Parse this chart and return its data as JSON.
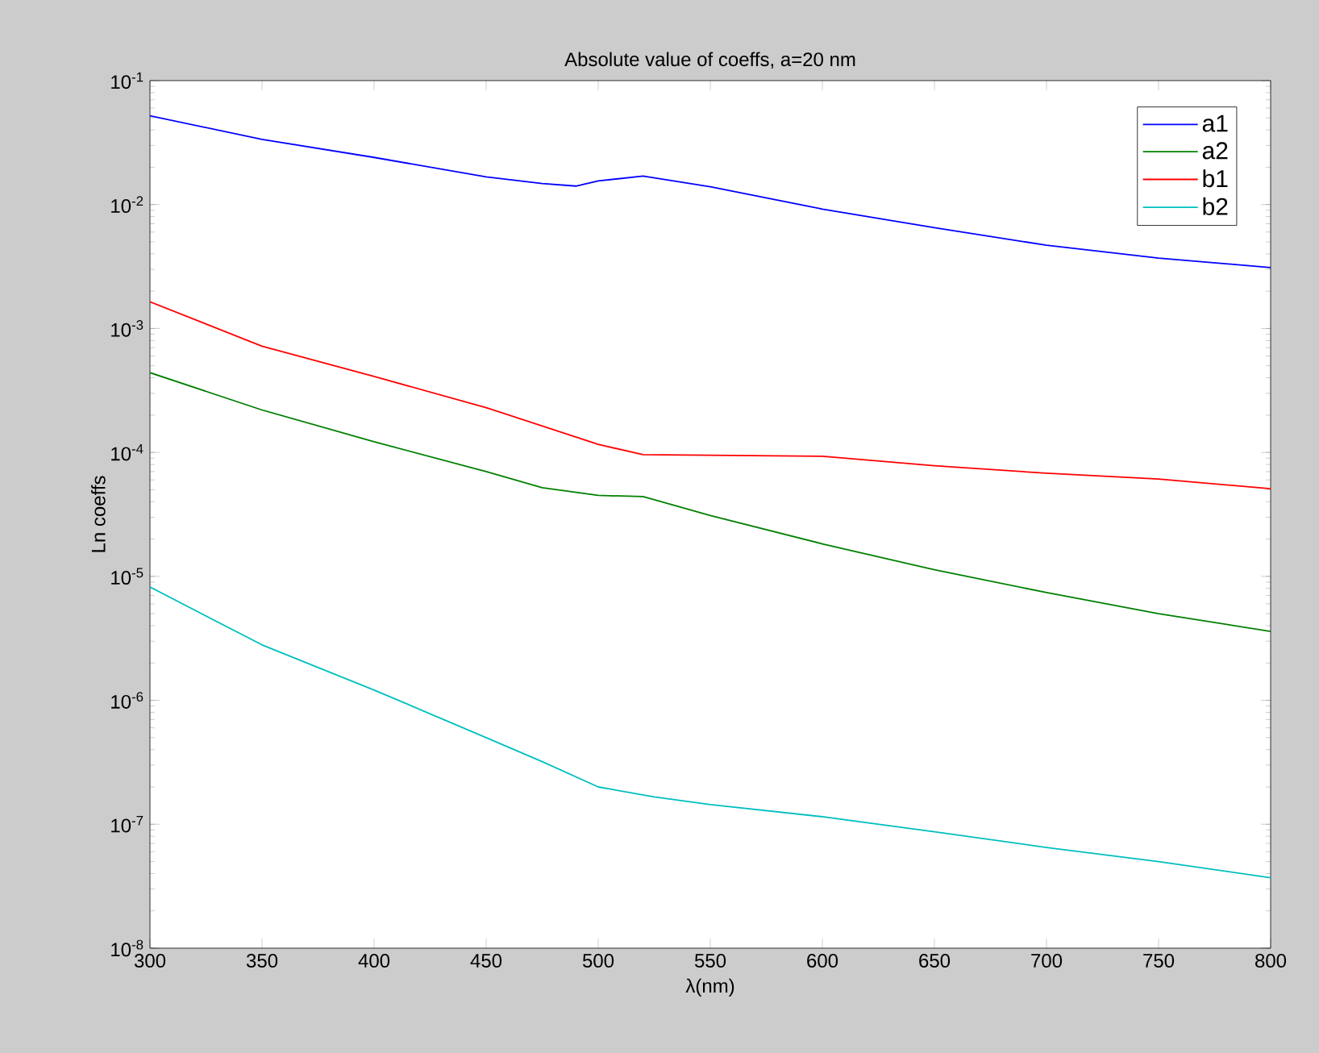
{
  "chart_data": {
    "type": "line",
    "title": "Absolute value of coeffs, a=20 nm",
    "xlabel": "λ(nm)",
    "ylabel": "Ln coeffs",
    "log": "y",
    "legend": "top right",
    "xlim": [
      300,
      800
    ],
    "ylim": [
      1e-08,
      0.1
    ],
    "xticks": [
      300,
      350,
      400,
      450,
      500,
      550,
      600,
      650,
      700,
      750,
      800
    ],
    "yticks": [
      {
        "value": 1e-08,
        "label": "10$^{-8}$"
      },
      {
        "value": 1e-07,
        "label": "10$^{-7}$"
      },
      {
        "value": 1e-06,
        "label": "10$^{-6}$"
      },
      {
        "value": 1e-05,
        "label": "10$^{-5}$"
      },
      {
        "value": 0.0001,
        "label": "10$^{-4}$"
      },
      {
        "value": 0.001,
        "label": "10$^{-3}$"
      },
      {
        "value": 0.01,
        "label": "10$^{-2}$"
      },
      {
        "value": 0.1,
        "label": "10$^{-1}$"
      }
    ],
    "series": [
      {
        "name": "a1",
        "color": "#0000ff",
        "x": [
          300,
          350,
          400,
          450,
          475,
          490,
          500,
          520,
          550,
          600,
          650,
          700,
          750,
          800
        ],
        "values": [
          0.052,
          0.0336,
          0.024,
          0.0167,
          0.0148,
          0.0141,
          0.0155,
          0.017,
          0.0139,
          0.0092,
          0.0065,
          0.0047,
          0.0037,
          0.0031
        ]
      },
      {
        "name": "a2",
        "color": "#008000",
        "x": [
          300,
          350,
          400,
          450,
          475,
          500,
          520,
          550,
          600,
          650,
          700,
          750,
          800
        ],
        "values": [
          0.00044,
          0.00022,
          0.000122,
          7e-05,
          5.2e-05,
          4.5e-05,
          4.4e-05,
          3.1e-05,
          1.83e-05,
          1.13e-05,
          7.4e-06,
          5e-06,
          3.6e-06
        ]
      },
      {
        "name": "b1",
        "color": "#ff0000",
        "x": [
          300,
          350,
          400,
          450,
          500,
          520,
          550,
          600,
          650,
          700,
          750,
          800
        ],
        "values": [
          0.00164,
          0.00072,
          0.00041,
          0.00023,
          0.000116,
          9.6e-05,
          9.5e-05,
          9.3e-05,
          7.8e-05,
          6.8e-05,
          6.1e-05,
          5.1e-05
        ]
      },
      {
        "name": "b2",
        "color": "#00bfbf",
        "x": [
          300,
          350,
          400,
          450,
          475,
          500,
          525,
          550,
          600,
          650,
          700,
          750,
          800
        ],
        "values": [
          8.2e-06,
          2.8e-06,
          1.21e-06,
          5e-07,
          3.2e-07,
          2e-07,
          1.66e-07,
          1.44e-07,
          1.15e-07,
          8.7e-08,
          6.5e-08,
          5e-08,
          3.7e-08
        ]
      }
    ]
  }
}
